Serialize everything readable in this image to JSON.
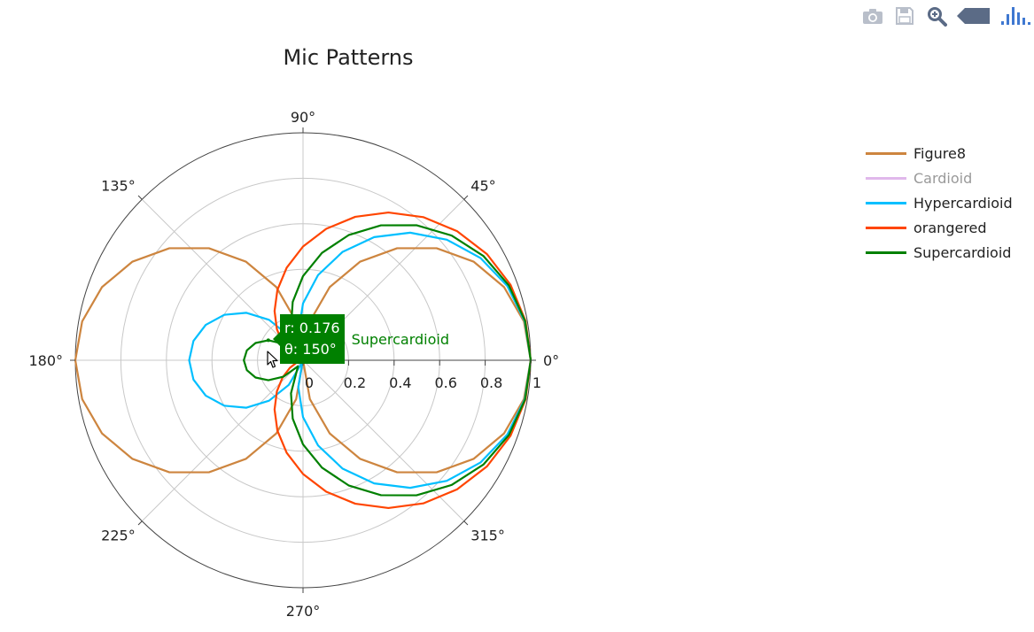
{
  "modebar": {
    "buttons": [
      {
        "name": "camera-icon",
        "color": "#b9bfca"
      },
      {
        "name": "save-icon",
        "color": "#b9bfca"
      },
      {
        "name": "zoom-icon",
        "color": "#5b6b86"
      },
      {
        "name": "tag-icon",
        "color": "#5b6b86"
      },
      {
        "name": "plotly-logo-icon",
        "color": "#3f78d1"
      }
    ]
  },
  "chart_data": {
    "type": "line",
    "subtype": "polar",
    "title": "Mic Patterns",
    "radial_axis": {
      "range": [
        0,
        1
      ],
      "ticks": [
        "0",
        "0.2",
        "0.4",
        "0.6",
        "0.8",
        "1"
      ],
      "angle": 0
    },
    "angular_axis": {
      "ticks": [
        "0°",
        "45°",
        "90°",
        "135°",
        "180°",
        "225°",
        "270°",
        "315°"
      ],
      "unit": "degrees"
    },
    "grid": true,
    "legend_position": "top-right",
    "series": [
      {
        "name": "Figure8",
        "color": "#cd853f",
        "visible": true,
        "formula": "|cos(theta)|",
        "theta_step": 10
      },
      {
        "name": "Cardioid",
        "color": "#cc88dd",
        "visible": false,
        "formula": "0.5 + 0.5*cos(theta)",
        "theta_step": 10
      },
      {
        "name": "Hypercardioid",
        "color": "#00bfff",
        "visible": true,
        "formula": "|0.25 + 0.75*cos(theta)|",
        "theta_step": 10
      },
      {
        "name": "orangered",
        "color": "#ff4500",
        "visible": true,
        "formula": "0.5 + 0.5*cos(theta)",
        "theta_step": 10
      },
      {
        "name": "Supercardioid",
        "color": "#008000",
        "visible": true,
        "formula": "|0.37 + 0.63*cos(theta)|",
        "theta_step": 10
      }
    ],
    "hover": {
      "series": "Supercardioid",
      "r_text": "r: 0.176",
      "theta_text": "θ: 150°",
      "r": 0.176,
      "theta": 150
    }
  }
}
